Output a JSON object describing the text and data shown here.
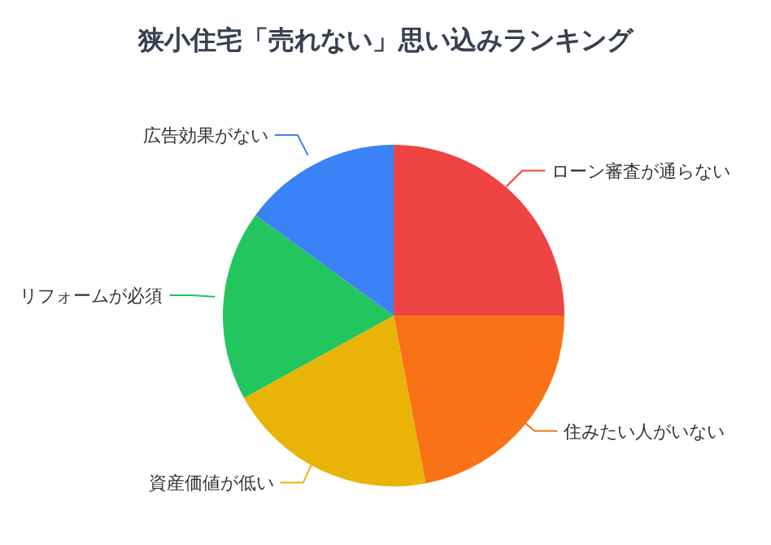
{
  "chart_data": {
    "type": "pie",
    "title": "狭小住宅「売れない」思い込みランキング",
    "categories": [
      "ローン審査が通らない",
      "住みたい人がいない",
      "資産価値が低い",
      "リフォームが必須",
      "広告効果がない"
    ],
    "values": [
      25,
      22,
      20,
      18,
      15
    ],
    "colors": [
      "#ef4444",
      "#f97316",
      "#eab308",
      "#22c55e",
      "#3b82f6"
    ]
  }
}
